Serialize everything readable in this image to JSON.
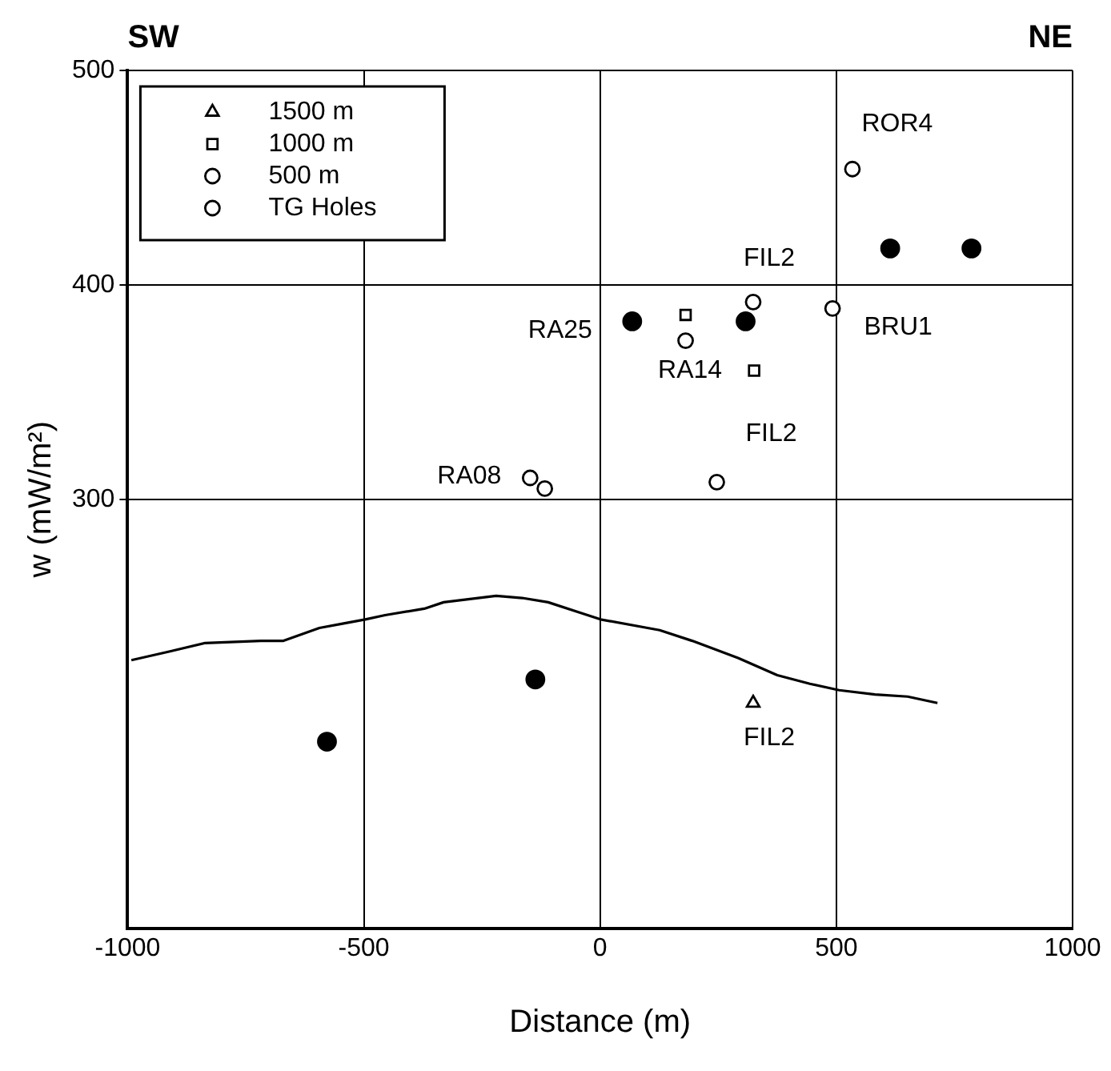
{
  "chart_data": {
    "type": "scatter",
    "xlabel": "Distance (m)",
    "ylabel": "w (mW/m²)",
    "xlim": [
      -1000,
      1000
    ],
    "xticks": [
      -1000,
      -500,
      0,
      500,
      1000
    ],
    "ylim": [
      100,
      500
    ],
    "yticks": [
      {
        "value": 100,
        "label": null
      },
      300,
      400,
      500
    ],
    "grid": true,
    "legend": "top left",
    "series": [
      {
        "name": "1500 m",
        "color": "#000000",
        "marker": "triangle",
        "x": [
          324
        ],
        "values": [
          205
        ]
      },
      {
        "name": "1000 m",
        "color": "#000000",
        "marker": "square",
        "x": [
          181,
          326
        ],
        "values": [
          386,
          360
        ]
      },
      {
        "name": "500 m",
        "color": "#000000",
        "marker": "circle",
        "x": [
          181,
          324,
          492,
          -148,
          -117
        ],
        "values": [
          374,
          392,
          389,
          310,
          305
        ]
      },
      {
        "name": "TG Holes",
        "color": "#000000",
        "marker": "circle",
        "x": [
          534,
          247
        ],
        "values": [
          454,
          308
        ]
      },
      {
        "color": "#000000",
        "marker": "circle",
        "x": [
          68,
          308,
          614,
          786,
          -137,
          -578
        ],
        "values": [
          383,
          383,
          417,
          417,
          216,
          187
        ]
      },
      {
        "type": "line",
        "color": "#000000",
        "marker": "none",
        "x": [
          -992,
          -912,
          -836,
          -718,
          -670,
          -594,
          -545,
          -497,
          -455,
          -372,
          -331,
          -220,
          -165,
          -110,
          1,
          126,
          195,
          292,
          375,
          444,
          506,
          582,
          651,
          714
        ],
        "values": [
          225,
          229,
          233,
          234,
          234,
          240,
          242,
          244,
          246,
          249,
          252,
          255,
          254,
          252,
          244,
          239,
          234,
          226,
          218,
          214,
          211,
          209,
          208,
          205
        ]
      }
    ],
    "annotations": [
      "SW",
      "NE",
      {
        "text": "ROR4",
        "x": 534,
        "y": 454
      },
      {
        "text": "FIL2",
        "x": 324,
        "y": 392
      },
      {
        "text": "RA25",
        "x": 68,
        "y": 383
      },
      {
        "text": "BRU1",
        "x": 492,
        "y": 389
      },
      {
        "text": "RA14",
        "x": 326,
        "y": 360
      },
      {
        "text": "FIL2",
        "x": 247,
        "y": 308
      },
      {
        "text": "RA08",
        "x": -148,
        "y": 310
      },
      {
        "text": "FIL2",
        "x": 324,
        "y": 205
      }
    ]
  }
}
